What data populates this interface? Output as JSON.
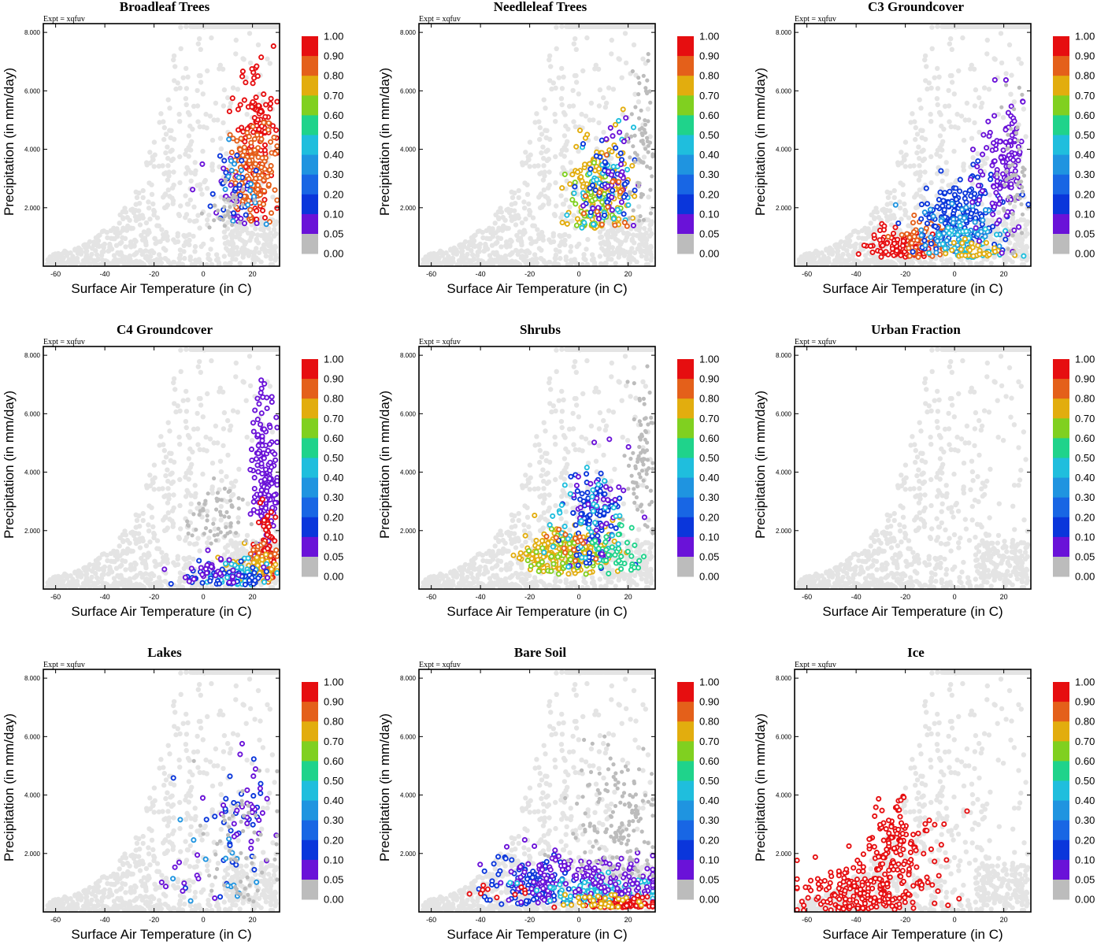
{
  "figure": {
    "expt_label": "Expt = xqfuv"
  },
  "chart_data": {
    "type": "scatter",
    "xlabel": "Surface Air Temperature (in C)",
    "ylabel": "Precipitation (in mm/day)",
    "xlim": [
      -65,
      31
    ],
    "ylim": [
      0,
      8300
    ],
    "xticks": [
      -60,
      -40,
      -20,
      0,
      20
    ],
    "xtick_labels": [
      "-60",
      "-40",
      "-20",
      "0",
      "20"
    ],
    "yticks": [
      2000,
      4000,
      6000,
      8000
    ],
    "ytick_labels": [
      "2.000",
      "4.000",
      "6.000",
      "8.000"
    ],
    "colorbar": {
      "labels": [
        "1.00",
        "0.90",
        "0.80",
        "0.70",
        "0.60",
        "0.50",
        "0.40",
        "0.30",
        "0.20",
        "0.10",
        "0.05",
        "0.00"
      ],
      "colors": [
        "#e60e10",
        "#e4601a",
        "#e2ad0e",
        "#80d020",
        "#1fd38b",
        "#1fbedd",
        "#1f94e0",
        "#1866e4",
        "#0a36db",
        "#6a12d8",
        "#bcbcbc"
      ]
    },
    "panels": [
      {
        "title": "Broadleaf Trees",
        "expt": "Expt = xqfuv",
        "clusters": [
          {
            "cx": 22,
            "sx": 4,
            "cy": 4200,
            "sy": 1300,
            "min_y": 1500,
            "n": 140,
            "color": "#e60e10"
          },
          {
            "cx": 20,
            "sx": 5,
            "cy": 3200,
            "sy": 800,
            "min_y": 1500,
            "n": 130,
            "color": "#e4601a"
          },
          {
            "cx": 12,
            "sx": 5,
            "cy": 2400,
            "sy": 700,
            "min_y": 1300,
            "n": 30,
            "color": "#6a12d8"
          },
          {
            "cx": 13,
            "sx": 5,
            "cy": 2600,
            "sy": 700,
            "min_y": 1300,
            "n": 25,
            "color": "#0a36db"
          },
          {
            "cx": 15,
            "sx": 5,
            "cy": 2800,
            "sy": 800,
            "min_y": 1300,
            "n": 15,
            "color": "#1f94e0"
          },
          {
            "cx": 8,
            "sx": 4,
            "cy": 2000,
            "sy": 400,
            "min_y": 1300,
            "n": 30,
            "color": "#bcbcbc"
          }
        ]
      },
      {
        "title": "Needleleaf Trees",
        "expt": "Expt = xqfuv",
        "clusters": [
          {
            "cx": 8,
            "sx": 6,
            "cy": 2600,
            "sy": 900,
            "min_y": 1300,
            "n": 130,
            "color": "#e2ad0e"
          },
          {
            "cx": 5,
            "sx": 6,
            "cy": 2000,
            "sy": 600,
            "min_y": 1300,
            "n": 40,
            "color": "#80d020"
          },
          {
            "cx": 10,
            "sx": 7,
            "cy": 2800,
            "sy": 1000,
            "min_y": 1300,
            "n": 40,
            "color": "#1fbedd"
          },
          {
            "cx": 12,
            "sx": 6,
            "cy": 3000,
            "sy": 1000,
            "min_y": 1300,
            "n": 40,
            "color": "#0a36db"
          },
          {
            "cx": 15,
            "sx": 5,
            "cy": 3200,
            "sy": 1000,
            "min_y": 1300,
            "n": 30,
            "color": "#6a12d8"
          },
          {
            "cx": 8,
            "sx": 6,
            "cy": 2200,
            "sy": 700,
            "min_y": 1300,
            "n": 15,
            "color": "#e4601a"
          },
          {
            "cx": 25,
            "sx": 3,
            "cy": 4000,
            "sy": 1600,
            "min_y": 1300,
            "n": 70,
            "color": "#bcbcbc"
          }
        ]
      },
      {
        "title": "C3 Groundcover",
        "expt": "Expt = xqfuv",
        "clusters": [
          {
            "cx": -22,
            "sx": 6,
            "cy": 700,
            "sy": 300,
            "min_y": 300,
            "n": 100,
            "color": "#e60e10"
          },
          {
            "cx": -12,
            "sx": 6,
            "cy": 900,
            "sy": 400,
            "min_y": 300,
            "n": 50,
            "color": "#e4601a"
          },
          {
            "cx": 2,
            "sx": 10,
            "cy": 1700,
            "sy": 700,
            "min_y": 300,
            "n": 170,
            "color": "#0a36db"
          },
          {
            "cx": 0,
            "sx": 9,
            "cy": 1200,
            "sy": 500,
            "min_y": 300,
            "n": 70,
            "color": "#1f94e0"
          },
          {
            "cx": 5,
            "sx": 8,
            "cy": 700,
            "sy": 300,
            "min_y": 300,
            "n": 50,
            "color": "#1fbedd"
          },
          {
            "cx": 8,
            "sx": 7,
            "cy": 500,
            "sy": 200,
            "min_y": 300,
            "n": 30,
            "color": "#e2ad0e"
          },
          {
            "cx": 20,
            "sx": 5,
            "cy": 3300,
            "sy": 1100,
            "min_y": 400,
            "n": 130,
            "color": "#6a12d8"
          },
          {
            "cx": 25,
            "sx": 3,
            "cy": 3000,
            "sy": 1700,
            "min_y": 400,
            "n": 50,
            "color": "#bcbcbc"
          }
        ]
      },
      {
        "title": "C4 Groundcover",
        "expt": "Expt = xqfuv",
        "clusters": [
          {
            "cx": 25,
            "sx": 3,
            "cy": 3800,
            "sy": 1400,
            "min_y": 400,
            "n": 160,
            "color": "#6a12d8"
          },
          {
            "cx": 26,
            "sx": 2,
            "cy": 1500,
            "sy": 700,
            "min_y": 200,
            "n": 60,
            "color": "#e60e10"
          },
          {
            "cx": 24,
            "sx": 3,
            "cy": 900,
            "sy": 400,
            "min_y": 200,
            "n": 60,
            "color": "#e4601a"
          },
          {
            "cx": 20,
            "sx": 6,
            "cy": 700,
            "sy": 300,
            "min_y": 200,
            "n": 50,
            "color": "#e2ad0e"
          },
          {
            "cx": 15,
            "sx": 7,
            "cy": 500,
            "sy": 300,
            "min_y": 150,
            "n": 50,
            "color": "#1fbedd"
          },
          {
            "cx": 10,
            "sx": 9,
            "cy": 400,
            "sy": 250,
            "min_y": 150,
            "n": 50,
            "color": "#0a36db"
          },
          {
            "cx": 5,
            "sx": 9,
            "cy": 600,
            "sy": 300,
            "min_y": 150,
            "n": 30,
            "color": "#6a12d8"
          },
          {
            "cx": 5,
            "sx": 8,
            "cy": 2500,
            "sy": 500,
            "min_y": 1500,
            "n": 60,
            "color": "#bcbcbc"
          }
        ]
      },
      {
        "title": "Shrubs",
        "expt": "Expt = xqfuv",
        "clusters": [
          {
            "cx": -8,
            "sx": 7,
            "cy": 1300,
            "sy": 400,
            "min_y": 500,
            "n": 150,
            "color": "#e2ad0e"
          },
          {
            "cx": 5,
            "sx": 8,
            "cy": 1400,
            "sy": 500,
            "min_y": 500,
            "n": 60,
            "color": "#e2ad0e"
          },
          {
            "cx": -5,
            "sx": 9,
            "cy": 1000,
            "sy": 400,
            "min_y": 500,
            "n": 50,
            "color": "#80d020"
          },
          {
            "cx": 5,
            "sx": 6,
            "cy": 2500,
            "sy": 800,
            "min_y": 700,
            "n": 90,
            "color": "#0a36db"
          },
          {
            "cx": 8,
            "sx": 7,
            "cy": 3000,
            "sy": 1000,
            "min_y": 700,
            "n": 40,
            "color": "#6a12d8"
          },
          {
            "cx": 2,
            "sx": 8,
            "cy": 2200,
            "sy": 900,
            "min_y": 700,
            "n": 40,
            "color": "#1fbedd"
          },
          {
            "cx": 15,
            "sx": 6,
            "cy": 1200,
            "sy": 500,
            "min_y": 500,
            "n": 40,
            "color": "#1fd38b"
          },
          {
            "cx": -3,
            "sx": 5,
            "cy": 1600,
            "sy": 300,
            "min_y": 900,
            "n": 15,
            "color": "#e4601a"
          },
          {
            "cx": 25,
            "sx": 3,
            "cy": 4500,
            "sy": 1500,
            "min_y": 1500,
            "n": 80,
            "color": "#bcbcbc"
          }
        ]
      },
      {
        "title": "Urban Fraction",
        "expt": "Expt = xqfuv",
        "clusters": []
      },
      {
        "title": "Lakes",
        "expt": "Expt = xqfuv",
        "clusters": [
          {
            "cx": 15,
            "sx": 8,
            "cy": 3000,
            "sy": 1200,
            "min_y": 500,
            "n": 35,
            "color": "#0a36db"
          },
          {
            "cx": 20,
            "sx": 7,
            "cy": 3500,
            "sy": 1000,
            "min_y": 500,
            "n": 30,
            "color": "#6a12d8"
          },
          {
            "cx": 10,
            "sx": 10,
            "cy": 1500,
            "sy": 800,
            "min_y": 300,
            "n": 15,
            "color": "#1f94e0"
          },
          {
            "cx": -10,
            "sx": 8,
            "cy": 1000,
            "sy": 500,
            "min_y": 300,
            "n": 10,
            "color": "#6a12d8"
          },
          {
            "cx": 15,
            "sx": 10,
            "cy": 2200,
            "sy": 1500,
            "min_y": 300,
            "n": 60,
            "color": "#bcbcbc"
          }
        ]
      },
      {
        "title": "Bare Soil",
        "expt": "Expt = xqfuv",
        "clusters": [
          {
            "cx": -18,
            "sx": 10,
            "cy": 900,
            "sy": 400,
            "min_y": 200,
            "n": 120,
            "color": "#0a36db"
          },
          {
            "cx": -12,
            "sx": 10,
            "cy": 1200,
            "sy": 500,
            "min_y": 200,
            "n": 80,
            "color": "#6a12d8"
          },
          {
            "cx": 10,
            "sx": 12,
            "cy": 700,
            "sy": 300,
            "min_y": 200,
            "n": 120,
            "color": "#1fbedd"
          },
          {
            "cx": 15,
            "sx": 10,
            "cy": 1100,
            "sy": 400,
            "min_y": 200,
            "n": 100,
            "color": "#6a12d8"
          },
          {
            "cx": 20,
            "sx": 10,
            "cy": 250,
            "sy": 150,
            "min_y": 150,
            "n": 70,
            "color": "#e60e10"
          },
          {
            "cx": -30,
            "sx": 8,
            "cy": 700,
            "sy": 200,
            "min_y": 200,
            "n": 10,
            "color": "#e60e10"
          },
          {
            "cx": 10,
            "sx": 8,
            "cy": 350,
            "sy": 150,
            "min_y": 150,
            "n": 30,
            "color": "#e2ad0e"
          },
          {
            "cx": 15,
            "sx": 10,
            "cy": 3000,
            "sy": 1200,
            "min_y": 1200,
            "n": 150,
            "color": "#bcbcbc"
          }
        ]
      },
      {
        "title": "Ice",
        "expt": "Expt = xqfuv",
        "clusters": [
          {
            "cx": -38,
            "sx": 14,
            "cy": 700,
            "sy": 500,
            "min_y": 50,
            "n": 200,
            "color": "#e60e10"
          },
          {
            "cx": -22,
            "sx": 7,
            "cy": 2300,
            "sy": 900,
            "min_y": 800,
            "n": 130,
            "color": "#e60e10"
          }
        ]
      }
    ]
  }
}
